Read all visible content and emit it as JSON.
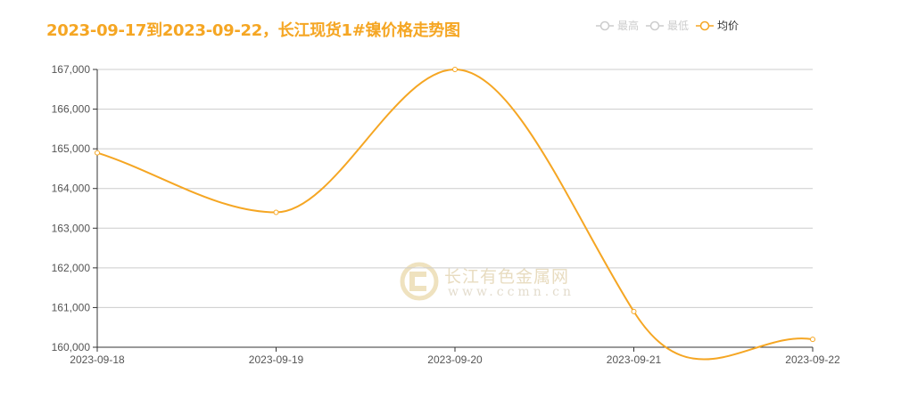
{
  "title": "2023-09-17到2023-09-22，长江现货1#镍价格走势图",
  "legend": [
    {
      "label": "最高",
      "active": false
    },
    {
      "label": "最低",
      "active": false
    },
    {
      "label": "均价",
      "active": true
    }
  ],
  "watermark": {
    "name": "长江有色金属网",
    "url": "www.ccmn.cn"
  },
  "colors": {
    "accent": "#f5a623",
    "inactive": "#cccccc",
    "grid": "#cccccc",
    "axis": "#333333"
  },
  "chart_data": {
    "type": "line",
    "title": "2023-09-17到2023-09-22，长江现货1#镍价格走势图",
    "categories": [
      "2023-09-18",
      "2023-09-19",
      "2023-09-20",
      "2023-09-21",
      "2023-09-22"
    ],
    "series": [
      {
        "name": "最高",
        "values": [],
        "visible": false
      },
      {
        "name": "最低",
        "values": [],
        "visible": false
      },
      {
        "name": "均价",
        "values": [
          164900,
          163400,
          167000,
          160900,
          160200
        ],
        "visible": true,
        "smooth": true
      }
    ],
    "xlabel": "",
    "ylabel": "",
    "ylim": [
      160000,
      167000
    ],
    "yticks": [
      "160,000",
      "161,000",
      "162,000",
      "163,000",
      "164,000",
      "165,000",
      "166,000",
      "167,000"
    ],
    "grid": true,
    "legend_position": "top-right"
  }
}
